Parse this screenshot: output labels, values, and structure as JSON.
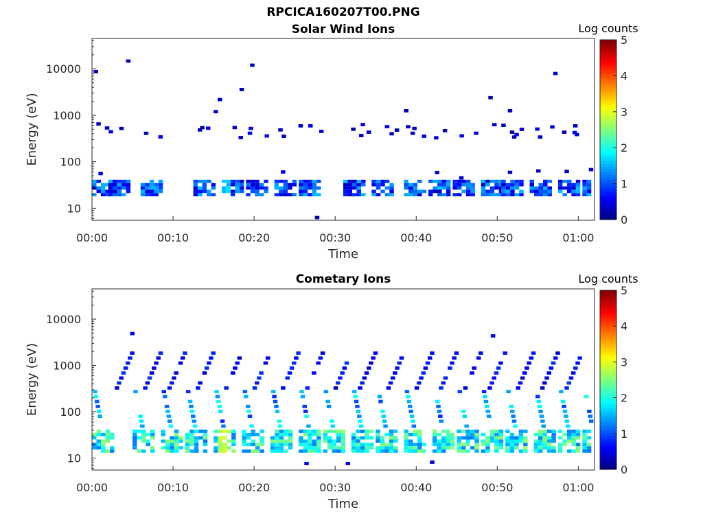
{
  "figure_title": "RPCICA160207T00.PNG",
  "chart_data": [
    {
      "type": "heatmap",
      "title": "Solar Wind Ions",
      "xlabel": "Time",
      "ylabel": "Energy (eV)",
      "x_range_min": [
        0,
        62
      ],
      "y_range_ev": [
        5.5,
        45000
      ],
      "y_scale": "log",
      "x_tick_labels": [
        "00:00",
        "00:10",
        "00:20",
        "00:30",
        "00:40",
        "00:50",
        "01:00"
      ],
      "x_tick_minutes": [
        0,
        10,
        20,
        30,
        40,
        50,
        60
      ],
      "y_tick_labels": [
        "10",
        "100",
        "1000",
        "10000"
      ],
      "y_tick_values": [
        10,
        100,
        1000,
        10000
      ],
      "grid": false,
      "colorbar": {
        "label": "Log counts",
        "min": 0,
        "max": 5,
        "tick_labels": [
          "0",
          "1",
          "2",
          "3",
          "4",
          "5"
        ],
        "colormap": "jet"
      },
      "cycle_start_min": [
        0.0,
        2.0,
        6.0,
        12.5,
        16.0,
        19.0,
        22.5,
        25.5,
        31.0,
        34.5,
        38.5,
        41.5,
        44.5,
        48.0,
        50.5,
        54.0,
        57.5,
        60.5
      ],
      "low_band": {
        "energy_ev": [
          18,
          40
        ],
        "typical_log_counts": [
          0.3,
          1.6
        ],
        "peak_log_counts": 1.9,
        "peak_time_min": 16.3
      },
      "mid_band": {
        "energy_ev": [
          300,
          600
        ],
        "typical_log_counts": [
          0.2,
          0.6
        ]
      },
      "sparse_points": [
        {
          "t": 0.2,
          "e": 8000,
          "v": 0.3
        },
        {
          "t": 4.2,
          "e": 13500,
          "v": 0.3
        },
        {
          "t": 19.5,
          "e": 11000,
          "v": 0.3
        },
        {
          "t": 18.2,
          "e": 3300,
          "v": 0.3
        },
        {
          "t": 15.5,
          "e": 2000,
          "v": 0.3
        },
        {
          "t": 15.0,
          "e": 1100,
          "v": 0.3
        },
        {
          "t": 48.9,
          "e": 2200,
          "v": 0.3
        },
        {
          "t": 51.3,
          "e": 1150,
          "v": 0.3
        },
        {
          "t": 38.5,
          "e": 1150,
          "v": 0.3
        },
        {
          "t": 56.9,
          "e": 7300,
          "v": 0.4
        },
        {
          "t": 27.5,
          "e": 5.8,
          "v": 0.3
        }
      ]
    },
    {
      "type": "heatmap",
      "title": "Cometary Ions",
      "xlabel": "Time",
      "ylabel": "Energy (eV)",
      "x_range_min": [
        0,
        62
      ],
      "y_range_ev": [
        5.5,
        45000
      ],
      "y_scale": "log",
      "x_tick_labels": [
        "00:00",
        "00:10",
        "00:20",
        "00:30",
        "00:40",
        "00:50",
        "01:00"
      ],
      "x_tick_minutes": [
        0,
        10,
        20,
        30,
        40,
        50,
        60
      ],
      "y_tick_labels": [
        "10",
        "100",
        "1000",
        "10000"
      ],
      "y_tick_values": [
        10,
        100,
        1000,
        10000
      ],
      "grid": false,
      "colorbar": {
        "label": "Log counts",
        "min": 0,
        "max": 5,
        "tick_labels": [
          "0",
          "1",
          "2",
          "3",
          "4",
          "5"
        ],
        "colormap": "jet"
      },
      "cycle_start_min": [
        0.0,
        5.0,
        8.5,
        11.5,
        15.0,
        18.5,
        22.0,
        25.5,
        28.5,
        32.0,
        35.0,
        38.5,
        42.0,
        45.0,
        48.0,
        51.0,
        54.5,
        57.5,
        60.5
      ],
      "low_band": {
        "energy_ev": [
          13,
          40
        ],
        "typical_log_counts": [
          1.2,
          2.6
        ],
        "peak_log_counts": 3.0,
        "peak_time_min": 16.3
      },
      "ramp": {
        "start_energy_ev": 300,
        "end_energy_ev": 1700,
        "typical_log_counts": [
          0.4,
          0.9
        ]
      },
      "sparse_points": [
        {
          "t": 4.7,
          "e": 4500,
          "v": 0.5
        },
        {
          "t": 26.2,
          "e": 7,
          "v": 0.5
        },
        {
          "t": 31.3,
          "e": 7,
          "v": 0.5
        },
        {
          "t": 41.7,
          "e": 7.5,
          "v": 0.5
        },
        {
          "t": 49.2,
          "e": 4000,
          "v": 0.6
        }
      ]
    }
  ]
}
